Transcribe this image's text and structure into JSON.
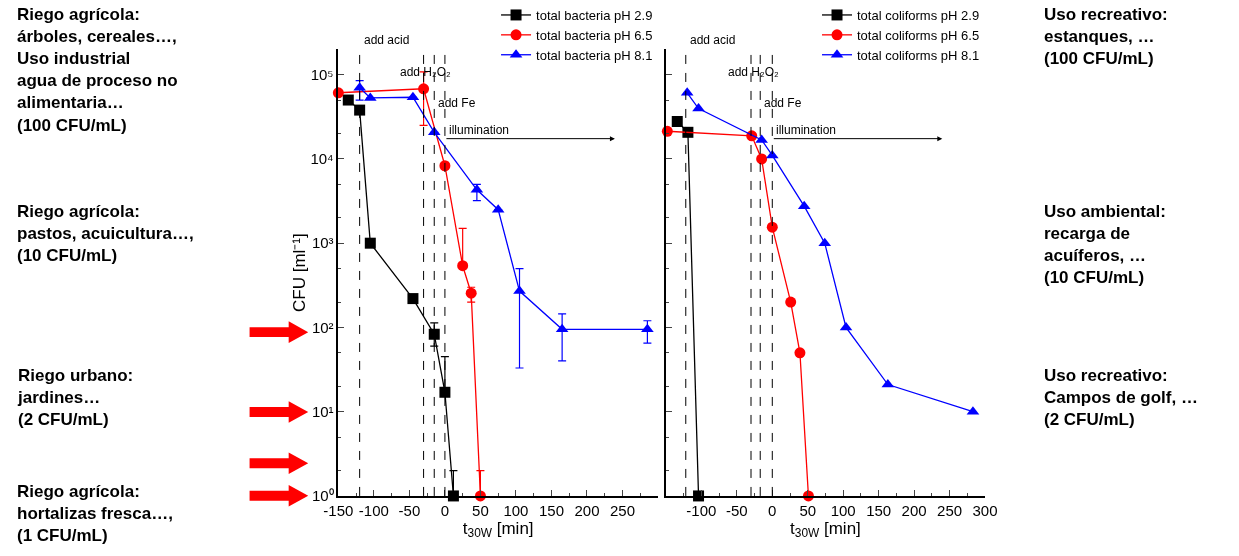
{
  "chart_data": [
    {
      "type": "line",
      "xlabel": "t$_{30W}$ [min]",
      "ylabel": "CFU [ml⁻¹]",
      "log": "y",
      "legend": "top right",
      "xlim": [
        -150,
        300
      ],
      "xticks": [
        -150,
        -100,
        -50,
        0,
        50,
        100,
        150,
        200,
        250
      ],
      "ylim": [
        1,
        200000
      ],
      "yticks": [
        {
          "value": 1,
          "label": "10⁰"
        },
        {
          "value": 10,
          "label": "10¹"
        },
        {
          "value": 100,
          "label": "10²"
        },
        {
          "value": 1000,
          "label": "10³"
        },
        {
          "value": 10000,
          "label": "10⁴"
        },
        {
          "value": 100000,
          "label": "10⁵"
        }
      ],
      "series": [
        {
          "name": "total bacteria pH 2.9",
          "color": "#000000",
          "marker": "square",
          "x": [
            -136,
            -120,
            -105,
            -45,
            -15,
            0,
            12
          ],
          "values": [
            50000,
            38000,
            1000,
            220,
            83,
            17,
            1
          ],
          "errors": [
            null,
            null,
            null,
            null,
            [
              60,
              113
            ],
            [
              17,
              45
            ],
            [
              1,
              2
            ]
          ]
        },
        {
          "name": "total bacteria pH 6.5",
          "color": "#ff0000",
          "marker": "circle",
          "x": [
            -150,
            -30,
            0,
            25,
            37,
            50
          ],
          "values": [
            61000,
            68000,
            8300,
            540,
            255,
            1
          ],
          "errors": [
            null,
            [
              25000,
              108000
            ],
            null,
            [
              540,
              1500
            ],
            [
              200,
              300
            ],
            [
              1,
              2
            ]
          ]
        },
        {
          "name": "total bacteria pH 8.1",
          "color": "#0000ff",
          "marker": "triangle",
          "x": [
            -120,
            -105,
            -45,
            -15,
            45,
            75,
            105,
            165,
            285
          ],
          "values": [
            70000,
            53000,
            54000,
            20700,
            4300,
            2500,
            270,
            95,
            95
          ],
          "errors": [
            [
              50000,
              85000
            ],
            null,
            null,
            null,
            [
              3200,
              5000
            ],
            null,
            [
              33,
              500
            ],
            [
              40,
              145
            ],
            [
              65,
              120
            ]
          ]
        }
      ],
      "ref_lines": [
        {
          "axis": "x",
          "value": -120,
          "label": "add acid",
          "line_style": "dashed"
        },
        {
          "axis": "x",
          "value": -30,
          "label": "add H₂O₂",
          "line_style": "dashed"
        },
        {
          "axis": "x",
          "value": -15,
          "label": "add Fe",
          "line_style": "dashed"
        },
        {
          "axis": "x",
          "value": 0,
          "label": "illumination",
          "line_style": "dashed"
        }
      ],
      "annotations": [
        "Riego agrícola:\nárboles, cereales…,\nUso industrial\nagua de proceso no\nalimentaria…\n(100 CFU/mL)",
        "Riego agrícola:\npastos, acuicultura…,\n(10 CFU/mL)",
        "Riego urbano:\njardines…\n(2 CFU/mL)",
        "Riego agrícola:\nhortalizas fresca…,\n(1 CFU/mL)"
      ]
    },
    {
      "type": "line",
      "xlabel": "t$_{30W}$ [min]",
      "log": "y",
      "legend": "top right",
      "tick_labels": "x",
      "xlim": [
        -150,
        300
      ],
      "xticks": [
        -100,
        -50,
        0,
        50,
        100,
        150,
        200,
        250,
        300
      ],
      "ylim": [
        1,
        200000
      ],
      "yticks": [
        1,
        10,
        100,
        1000,
        10000,
        100000
      ],
      "series": [
        {
          "name": "total coliforms pH 2.9",
          "color": "#000000",
          "marker": "square",
          "x": [
            -134,
            -119,
            -104
          ],
          "values": [
            27800,
            20700,
            1
          ]
        },
        {
          "name": "total coliforms pH 6.5",
          "color": "#ff0000",
          "marker": "circle",
          "x": [
            -148,
            -29,
            -15,
            0,
            26,
            39,
            51
          ],
          "values": [
            21300,
            18800,
            10000,
            1550,
            200,
            50,
            1
          ]
        },
        {
          "name": "total coliforms pH 8.1",
          "color": "#0000ff",
          "marker": "triangle",
          "x": [
            -120,
            -104,
            -15,
            0,
            45,
            74,
            104,
            163,
            283
          ],
          "values": [
            61000,
            39600,
            16800,
            11000,
            2750,
            1000,
            100,
            21,
            10
          ]
        }
      ],
      "ref_lines": [
        {
          "axis": "x",
          "value": -122,
          "label": "add acid",
          "line_style": "dashed"
        },
        {
          "axis": "x",
          "value": -30,
          "label": "add H₂O₂",
          "line_style": "dashed"
        },
        {
          "axis": "x",
          "value": -17,
          "label": "add Fe",
          "line_style": "dashed"
        },
        {
          "axis": "x",
          "value": 0,
          "label": "illumination",
          "line_style": "dashed"
        }
      ],
      "annotations": [
        "Uso recreativo:\nestanques, …\n(100 CFU/mL)",
        "Uso ambiental:\nrecarga de\nacuíferos, …\n(10 CFU/mL)",
        "Uso recreativo:\nCampos de golf, …\n(2 CFU/mL)"
      ]
    }
  ]
}
